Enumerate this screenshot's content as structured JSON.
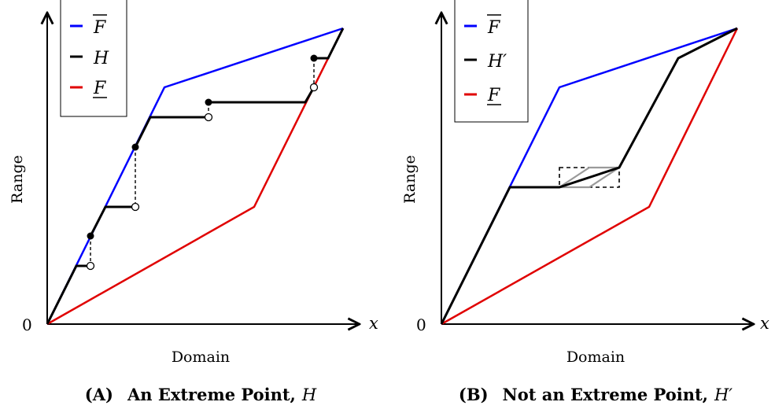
{
  "panels": [
    {
      "id": "A",
      "caption_tag": "(A)",
      "caption_text": "An Extreme Point,",
      "caption_var": "H",
      "x_axis_symbol": "x",
      "x_axis_label": "Domain",
      "y_axis_label": "Range",
      "origin_label": "0",
      "legend": [
        {
          "label": "F",
          "decoration": "overline",
          "color": "#0000ff"
        },
        {
          "label": "H",
          "decoration": "none",
          "color": "#000000"
        },
        {
          "label": "F",
          "decoration": "underline",
          "color": "#e00000"
        }
      ]
    },
    {
      "id": "B",
      "caption_tag": "(B)",
      "caption_text": "Not an Extreme Point,",
      "caption_var": "H′",
      "x_axis_symbol": "x",
      "x_axis_label": "Domain",
      "y_axis_label": "Range",
      "origin_label": "0",
      "legend": [
        {
          "label": "F",
          "decoration": "overline",
          "color": "#0000ff"
        },
        {
          "label": "H′",
          "decoration": "none",
          "color": "#000000"
        },
        {
          "label": "F",
          "decoration": "underline",
          "color": "#e00000"
        }
      ]
    }
  ],
  "colors": {
    "upper_bound": "#0000ff",
    "function": "#000000",
    "lower_bound": "#e00000",
    "perturbation": "#9a9a9a"
  }
}
